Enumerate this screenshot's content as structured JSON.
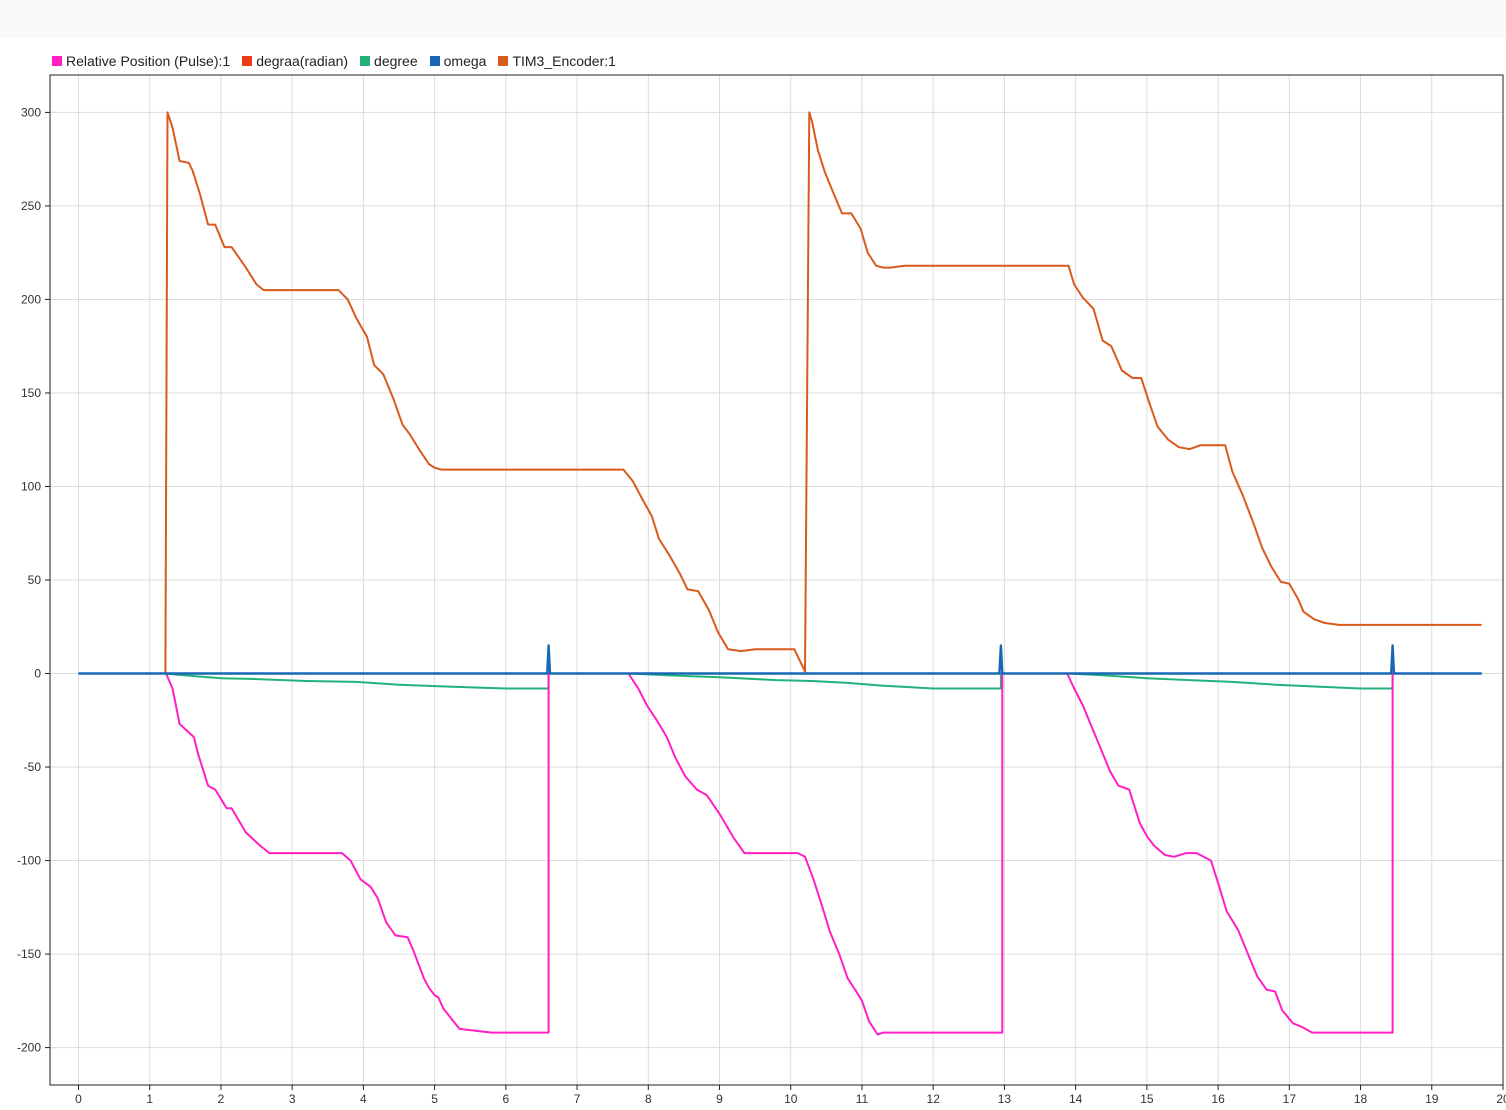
{
  "chart_data": {
    "type": "line",
    "title": "",
    "xlabel": "",
    "ylabel": "",
    "xlim": [
      -0.4,
      20.0
    ],
    "ylim": [
      -220,
      320
    ],
    "x_ticks": [
      "0",
      "1",
      "2",
      "3",
      "4",
      "5",
      "6",
      "7",
      "8",
      "9",
      "10",
      "11",
      "12",
      "13",
      "14",
      "15",
      "16",
      "17",
      "18",
      "19",
      "20"
    ],
    "y_ticks": [
      "300",
      "250",
      "200",
      "150",
      "100",
      "50",
      "0",
      "-50",
      "-100",
      "-150",
      "-200"
    ],
    "grid": true,
    "legend_position": "top-left",
    "series": [
      {
        "name": "Relative Position (Pulse):1",
        "color": "#ff1fc2",
        "x": [
          0,
          1.22,
          1.23,
          1.32,
          1.42,
          1.62,
          1.68,
          1.82,
          1.92,
          2.08,
          2.15,
          2.35,
          2.55,
          2.68,
          2.8,
          2.95,
          3.2,
          3.5,
          3.7,
          3.82,
          3.96,
          4.1,
          4.2,
          4.32,
          4.45,
          4.62,
          4.7,
          4.85,
          4.92,
          5.0,
          5.05,
          5.12,
          5.35,
          5.8,
          6.2,
          6.6,
          6.6,
          7.0,
          7.4,
          7.72,
          7.86,
          7.98,
          8.12,
          8.26,
          8.38,
          8.52,
          8.68,
          8.82,
          9.0,
          9.2,
          9.35,
          9.5,
          9.8,
          10.1,
          10.2,
          10.32,
          10.42,
          10.55,
          10.68,
          10.8,
          10.92,
          11.0,
          11.1,
          11.22,
          11.3,
          11.4,
          11.6,
          12.0,
          12.5,
          12.97,
          12.97,
          13.4,
          13.88,
          13.98,
          14.1,
          14.22,
          14.35,
          14.48,
          14.6,
          14.75,
          14.9,
          15.0,
          15.1,
          15.25,
          15.38,
          15.55,
          15.7,
          15.9,
          16.0,
          16.12,
          16.28,
          16.42,
          16.55,
          16.68,
          16.8,
          16.9,
          17.05,
          17.18,
          17.32,
          17.42,
          17.6,
          18.0,
          18.45,
          18.45,
          19.0,
          19.7
        ],
        "y": [
          0,
          0,
          0,
          -8,
          -27,
          -34,
          -43,
          -60,
          -62,
          -72,
          -72,
          -85,
          -92,
          -96,
          -96,
          -96,
          -96,
          -96,
          -96,
          -100,
          -110,
          -114,
          -120,
          -133,
          -140,
          -141,
          -148,
          -163,
          -168,
          -172,
          -173,
          -179,
          -190,
          -192,
          -192,
          -192,
          0,
          0,
          0,
          0,
          -8,
          -17,
          -25,
          -34,
          -45,
          -55,
          -62,
          -65,
          -75,
          -88,
          -96,
          -96,
          -96,
          -96,
          -98,
          -110,
          -122,
          -138,
          -150,
          -163,
          -170,
          -175,
          -186,
          -193,
          -192,
          -192,
          -192,
          -192,
          -192,
          -192,
          0,
          0,
          0,
          -8,
          -17,
          -28,
          -40,
          -52,
          -60,
          -62,
          -80,
          -87,
          -92,
          -97,
          -98,
          -96,
          -96,
          -100,
          -112,
          -127,
          -137,
          -150,
          -162,
          -169,
          -170,
          -180,
          -187,
          -189,
          -192,
          -192,
          -192,
          -192,
          -192,
          0,
          0,
          0
        ]
      },
      {
        "name": "degraa(radian)",
        "color": "#ee3a15",
        "x": [
          0,
          19.7
        ],
        "y": [
          0,
          0
        ]
      },
      {
        "name": "degree",
        "color": "#23b27a",
        "x": [
          0,
          1.22,
          1.5,
          2.0,
          2.5,
          3.2,
          3.9,
          4.5,
          5.2,
          6.0,
          6.6,
          6.6,
          7.75,
          8.3,
          9.0,
          9.8,
          10.3,
          10.8,
          11.3,
          12.0,
          12.95,
          12.95,
          13.9,
          14.4,
          15.0,
          15.6,
          16.2,
          16.8,
          17.4,
          18.0,
          18.45,
          18.45,
          19.7
        ],
        "y": [
          0,
          0,
          -1,
          -2.5,
          -3,
          -4,
          -4.5,
          -6,
          -7,
          -8,
          -8,
          0,
          0,
          -1,
          -2,
          -3.5,
          -4,
          -5,
          -6.5,
          -8,
          -8,
          0,
          0,
          -1,
          -2.5,
          -3.5,
          -4.5,
          -6,
          -7,
          -8,
          -8,
          0,
          0
        ]
      },
      {
        "name": "omega",
        "color": "#1668b7",
        "x": [
          0,
          6.58,
          6.6,
          6.62,
          12.93,
          12.95,
          12.97,
          18.43,
          18.45,
          18.47,
          19.7
        ],
        "y": [
          0,
          0,
          15,
          0,
          0,
          15,
          0,
          0,
          15,
          0,
          0
        ]
      },
      {
        "name": "TIM3_Encoder:1",
        "color": "#d95a1c",
        "x": [
          0,
          1.22,
          1.25,
          1.32,
          1.42,
          1.55,
          1.6,
          1.7,
          1.82,
          1.92,
          2.05,
          2.15,
          2.35,
          2.5,
          2.6,
          2.75,
          3.2,
          3.65,
          3.78,
          3.9,
          4.05,
          4.15,
          4.28,
          4.42,
          4.55,
          4.65,
          4.78,
          4.92,
          5.0,
          5.1,
          5.25,
          5.4,
          5.8,
          6.5,
          7.2,
          7.65,
          7.78,
          7.92,
          8.05,
          8.15,
          8.3,
          8.45,
          8.55,
          8.7,
          8.85,
          8.98,
          9.12,
          9.3,
          9.5,
          9.7,
          10.05,
          10.2,
          10.26,
          10.3,
          10.38,
          10.48,
          10.62,
          10.72,
          10.85,
          10.98,
          11.08,
          11.2,
          11.3,
          11.4,
          11.6,
          12.0,
          12.5,
          13.0,
          13.5,
          13.9,
          13.98,
          14.1,
          14.25,
          14.38,
          14.5,
          14.65,
          14.8,
          14.92,
          15.05,
          15.15,
          15.3,
          15.45,
          15.6,
          15.75,
          15.95,
          16.1,
          16.2,
          16.35,
          16.5,
          16.62,
          16.75,
          16.88,
          17.0,
          17.12,
          17.2,
          17.35,
          17.5,
          17.7,
          18.5,
          19.7
        ],
        "y": [
          0,
          0,
          300,
          292,
          274,
          273,
          269,
          257,
          240,
          240,
          228,
          228,
          217,
          208,
          205,
          205,
          205,
          205,
          200,
          190,
          180,
          165,
          160,
          147,
          133,
          128,
          120,
          112,
          110,
          109,
          109,
          109,
          109,
          109,
          109,
          109,
          103,
          93,
          84,
          72,
          63,
          53,
          45,
          44,
          34,
          22,
          13,
          12,
          13,
          13,
          13,
          1,
          300,
          295,
          280,
          268,
          255,
          246,
          246,
          238,
          225,
          218,
          217,
          217,
          218,
          218,
          218,
          218,
          218,
          218,
          208,
          201,
          195,
          178,
          175,
          162,
          158,
          158,
          143,
          132,
          125,
          121,
          120,
          122,
          122,
          122,
          108,
          95,
          80,
          67,
          57,
          49,
          48,
          40,
          33,
          29,
          27,
          26,
          26,
          26
        ]
      }
    ]
  }
}
